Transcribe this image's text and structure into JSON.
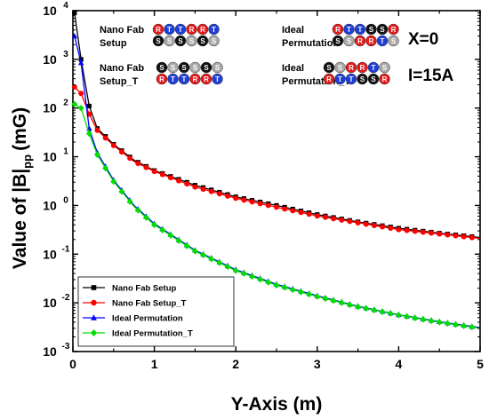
{
  "chart_data": {
    "type": "line",
    "xlabel": "Y-Axis (m)",
    "ylabel_main": "Value of |B|",
    "ylabel_sub": "pp",
    "ylabel_unit": "(mG)",
    "xlim": [
      0,
      5
    ],
    "ylim": [
      0.001,
      10000
    ],
    "yscale": "log",
    "grid": false,
    "x_ticks": [
      "0",
      "1",
      "2",
      "3",
      "4",
      "5"
    ],
    "y_ticks": [
      {
        "base": "10",
        "exp": "-3"
      },
      {
        "base": "10",
        "exp": "-2"
      },
      {
        "base": "10",
        "exp": "-1"
      },
      {
        "base": "10",
        "exp": "0"
      },
      {
        "base": "10",
        "exp": "1"
      },
      {
        "base": "10",
        "exp": "2"
      },
      {
        "base": "10",
        "exp": "3"
      },
      {
        "base": "10",
        "exp": "4"
      }
    ],
    "legend_position": "bottom-left",
    "series": [
      {
        "name": "Nano Fab Setup",
        "color": "#000000",
        "marker": "square",
        "x": [
          0.02,
          0.1,
          0.2,
          0.3,
          0.5,
          0.75,
          1.0,
          1.5,
          2.0,
          2.5,
          3.0,
          3.5,
          4.0,
          4.5,
          5.0
        ],
        "y": [
          9000,
          1000,
          110,
          38,
          18,
          8.5,
          5.2,
          2.6,
          1.5,
          1.0,
          0.65,
          0.46,
          0.34,
          0.27,
          0.22
        ]
      },
      {
        "name": "Nano Fab Setup_T",
        "color": "#ff0000",
        "marker": "circle",
        "x": [
          0.02,
          0.1,
          0.2,
          0.3,
          0.5,
          0.75,
          1.0,
          1.5,
          2.0,
          2.5,
          3.0,
          3.5,
          4.0,
          4.5,
          5.0
        ],
        "y": [
          270,
          200,
          75,
          35,
          17,
          8.0,
          5.0,
          2.4,
          1.4,
          0.92,
          0.61,
          0.44,
          0.32,
          0.26,
          0.21
        ]
      },
      {
        "name": "Ideal Permutation",
        "color": "#0000ff",
        "marker": "triangle",
        "x": [
          0.02,
          0.1,
          0.2,
          0.3,
          0.5,
          0.75,
          1.0,
          1.5,
          2.0,
          2.5,
          3.0,
          3.5,
          4.0,
          4.5,
          5.0
        ],
        "y": [
          3000,
          850,
          38,
          12,
          3.3,
          1.0,
          0.42,
          0.12,
          0.048,
          0.024,
          0.014,
          0.0085,
          0.0057,
          0.0041,
          0.0031
        ]
      },
      {
        "name": "Ideal Permutation_T",
        "color": "#00dd00",
        "marker": "diamond",
        "x": [
          0.02,
          0.1,
          0.2,
          0.3,
          0.5,
          0.75,
          1.0,
          1.5,
          2.0,
          2.5,
          3.0,
          3.5,
          4.0,
          4.5,
          5.0
        ],
        "y": [
          120,
          100,
          30,
          11,
          3.1,
          0.95,
          0.4,
          0.115,
          0.046,
          0.023,
          0.0135,
          0.0083,
          0.0056,
          0.004,
          0.003
        ]
      }
    ],
    "annotations": {
      "setups": [
        {
          "label_lines": [
            "Nano Fab",
            "Setup"
          ],
          "rows": [
            [
              {
                "l": "R",
                "c": "red"
              },
              {
                "l": "T",
                "c": "blue"
              },
              {
                "l": "T",
                "c": "blue"
              },
              {
                "l": "R",
                "c": "red"
              },
              {
                "l": "R",
                "c": "red"
              },
              {
                "l": "T",
                "c": "blue"
              }
            ],
            [
              {
                "l": "S",
                "c": "black"
              },
              {
                "l": "S",
                "c": "gray"
              },
              {
                "l": "S",
                "c": "black"
              },
              {
                "l": "S",
                "c": "gray"
              },
              {
                "l": "S",
                "c": "black"
              },
              {
                "l": "S",
                "c": "gray"
              }
            ]
          ]
        },
        {
          "label_lines": [
            "Ideal",
            "Permutation"
          ],
          "rows": [
            [
              {
                "l": "R",
                "c": "red"
              },
              {
                "l": "T",
                "c": "blue"
              },
              {
                "l": "T",
                "c": "blue"
              },
              {
                "l": "S",
                "c": "black"
              },
              {
                "l": "S",
                "c": "black"
              },
              {
                "l": "R",
                "c": "red"
              }
            ],
            [
              {
                "l": "S",
                "c": "black"
              },
              {
                "l": "S",
                "c": "gray"
              },
              {
                "l": "R",
                "c": "red"
              },
              {
                "l": "R",
                "c": "red"
              },
              {
                "l": "T",
                "c": "blue"
              },
              {
                "l": "S",
                "c": "gray"
              }
            ]
          ]
        },
        {
          "label_lines": [
            "Nano Fab",
            "Setup_T"
          ],
          "rows": [
            [
              {
                "l": "S",
                "c": "black"
              },
              {
                "l": "S",
                "c": "gray"
              },
              {
                "l": "S",
                "c": "black"
              },
              {
                "l": "S",
                "c": "gray"
              },
              {
                "l": "S",
                "c": "black"
              },
              {
                "l": "S",
                "c": "gray"
              }
            ],
            [
              {
                "l": "R",
                "c": "red"
              },
              {
                "l": "T",
                "c": "blue"
              },
              {
                "l": "T",
                "c": "blue"
              },
              {
                "l": "R",
                "c": "red"
              },
              {
                "l": "R",
                "c": "red"
              },
              {
                "l": "T",
                "c": "blue"
              }
            ]
          ]
        },
        {
          "label_lines": [
            "Ideal",
            "Permutation_T"
          ],
          "rows": [
            [
              {
                "l": "S",
                "c": "black"
              },
              {
                "l": "S",
                "c": "gray"
              },
              {
                "l": "R",
                "c": "red"
              },
              {
                "l": "R",
                "c": "red"
              },
              {
                "l": "T",
                "c": "blue"
              },
              {
                "l": "S",
                "c": "gray"
              }
            ],
            [
              {
                "l": "R",
                "c": "red"
              },
              {
                "l": "T",
                "c": "blue"
              },
              {
                "l": "T",
                "c": "blue"
              },
              {
                "l": "S",
                "c": "black"
              },
              {
                "l": "S",
                "c": "black"
              },
              {
                "l": "R",
                "c": "red"
              }
            ]
          ]
        }
      ],
      "condition_x": "X=0",
      "condition_i": "I=15A"
    },
    "ball_colors": {
      "red": "#e41a1c",
      "blue": "#1f3fd6",
      "black": "#111111",
      "gray": "#a8a8a8"
    }
  }
}
